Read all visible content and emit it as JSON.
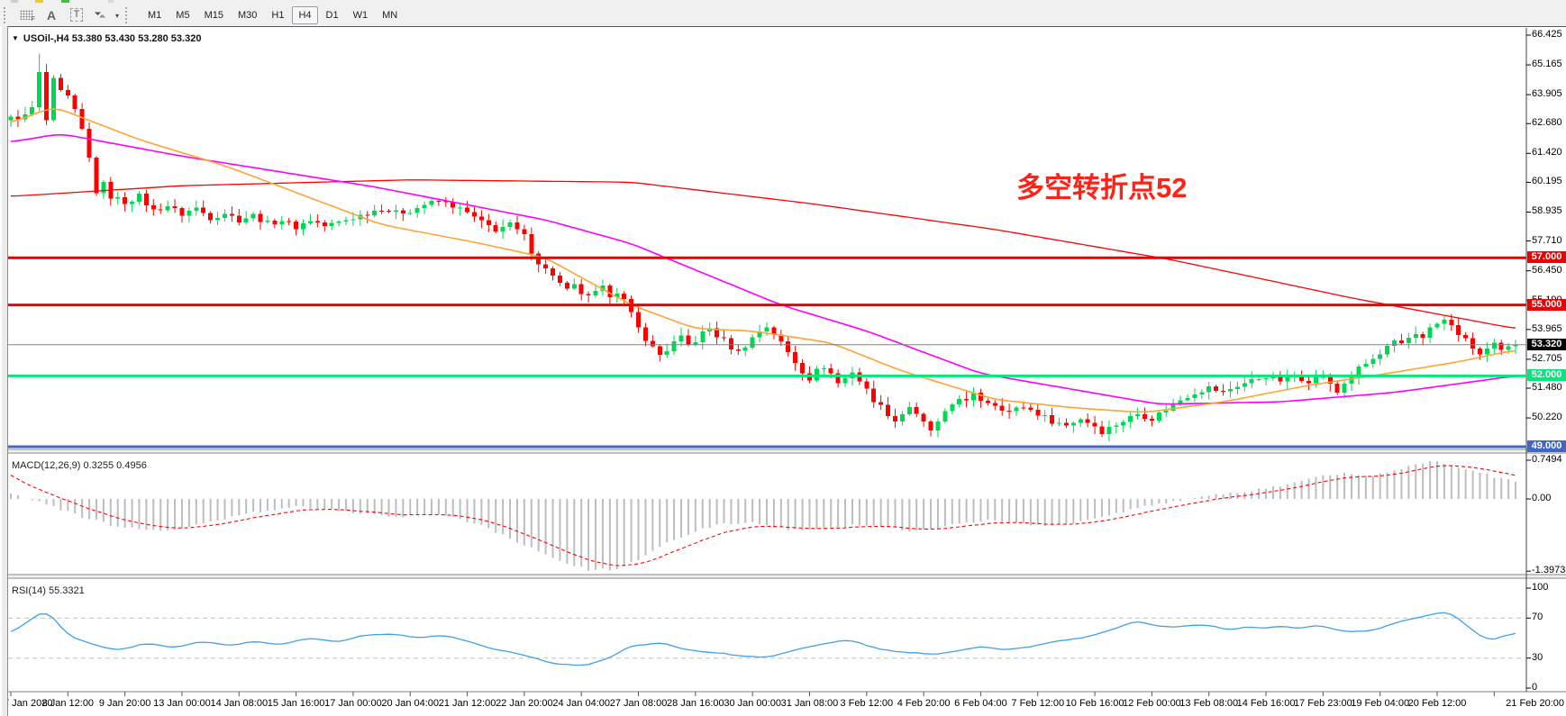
{
  "toolbar": {
    "icons": [
      {
        "name": "crosshair-grid-icon",
        "label": "F"
      },
      {
        "name": "text-label-icon",
        "label": "A"
      },
      {
        "name": "text-box-icon",
        "label": "T"
      },
      {
        "name": "arrow-tools-icon",
        "label": "▾"
      }
    ],
    "timeframes": [
      "M1",
      "M5",
      "M15",
      "M30",
      "H1",
      "H4",
      "D1",
      "W1",
      "MN"
    ],
    "active_timeframe": "H4"
  },
  "chart": {
    "title": "USOil-,H4  53.380 53.430 53.280 53.320",
    "symbol": "USOil-",
    "period": "H4",
    "ohlc": {
      "open": "53.380",
      "high": "53.430",
      "low": "53.280",
      "close": "53.320"
    },
    "annotation": {
      "text": "多空转折点52",
      "color": "#ff2317"
    },
    "price_ticks": [
      "66.425",
      "65.165",
      "63.905",
      "62.680",
      "61.420",
      "60.195",
      "58.935",
      "57.710",
      "56.450",
      "55.190",
      "53.965",
      "52.705",
      "51.480",
      "50.220"
    ],
    "hlines": [
      {
        "price": 57.0,
        "label": "57.000",
        "color": "#ef0000",
        "width": 3,
        "label_bg": "#ef0000"
      },
      {
        "price": 55.0,
        "label": "55.000",
        "color": "#ef0000",
        "width": 3,
        "label_bg": "#ef0000"
      },
      {
        "price": 53.32,
        "label": "53.320",
        "color": "#808080",
        "width": 1,
        "label_bg": "#000000"
      },
      {
        "price": 52.0,
        "label": "52.000",
        "color": "#00e97a",
        "width": 3,
        "label_bg": "#00e97a"
      },
      {
        "price": 49.0,
        "label": "49.000",
        "color": "#4066cc",
        "width": 3,
        "label_bg": "#4066cc"
      }
    ]
  },
  "macd": {
    "label": "MACD(12,26,9)",
    "values_text": "0.3255 0.4956",
    "main_value": 0.3255,
    "signal_value": 0.4956,
    "ticks": [
      {
        "label": "0.7494",
        "value": 0.7494
      },
      {
        "label": "0.00",
        "value": 0.0
      },
      {
        "label": "-1.3973",
        "value": -1.3973
      }
    ]
  },
  "rsi": {
    "label": "RSI(14)",
    "value_text": "55.3321",
    "value": 55.3321,
    "ticks": [
      {
        "label": "100",
        "value": 100
      },
      {
        "label": "70",
        "value": 70
      },
      {
        "label": "30",
        "value": 30
      },
      {
        "label": "0",
        "value": 0
      }
    ],
    "dashed_levels": [
      70,
      30
    ]
  },
  "time_axis": [
    "7 Jan 2020",
    "8 Jan 12:00",
    "9 Jan 20:00",
    "13 Jan 00:00",
    "14 Jan 08:00",
    "15 Jan 16:00",
    "17 Jan 00:00",
    "20 Jan 04:00",
    "21 Jan 12:00",
    "22 Jan 20:00",
    "24 Jan 04:00",
    "27 Jan 08:00",
    "28 Jan 16:00",
    "30 Jan 00:00",
    "31 Jan 08:00",
    "3 Feb 12:00",
    "4 Feb 20:00",
    "6 Feb 04:00",
    "7 Feb 12:00",
    "10 Feb 16:00",
    "12 Feb 00:00",
    "13 Feb 08:00",
    "14 Feb 16:00",
    "17 Feb 23:00",
    "19 Feb 04:00",
    "20 Feb 12:00",
    "21 Feb 20:00"
  ],
  "colors": {
    "bull": "#00d855",
    "bear": "#ff0000",
    "ma_fast_orange": "#ffa335",
    "ma_mid_magenta": "#ff00ff",
    "ma_slow_red": "#ff0000",
    "macd_bar": "#bdbdbd",
    "macd_signal": "#ff0000",
    "rsi_line": "#3fa0e8",
    "dashed_grid": "#c4c4c4",
    "axis_text": "#000000",
    "panel_border": "#7a7a7a"
  },
  "chart_data": {
    "type": "candlestick",
    "symbol": "USOil-",
    "timeframe": "H4",
    "n_candles": 212,
    "y_axis_range": [
      48.7,
      66.7
    ],
    "close_path_anchors": [
      [
        0,
        62.9
      ],
      [
        2,
        63.0
      ],
      [
        3,
        63.35
      ],
      [
        4,
        64.8
      ],
      [
        5,
        62.8
      ],
      [
        6,
        64.5
      ],
      [
        7,
        64.0
      ],
      [
        8,
        63.8
      ],
      [
        9,
        63.2
      ],
      [
        10,
        62.4
      ],
      [
        11,
        61.2
      ],
      [
        12,
        59.8
      ],
      [
        13,
        60.1
      ],
      [
        14,
        59.6
      ],
      [
        16,
        59.35
      ],
      [
        18,
        59.6
      ],
      [
        20,
        59.0
      ],
      [
        22,
        59.2
      ],
      [
        24,
        58.85
      ],
      [
        26,
        59.1
      ],
      [
        28,
        58.7
      ],
      [
        30,
        58.9
      ],
      [
        32,
        58.6
      ],
      [
        34,
        58.8
      ],
      [
        36,
        58.45
      ],
      [
        38,
        58.6
      ],
      [
        40,
        58.3
      ],
      [
        42,
        58.6
      ],
      [
        44,
        58.35
      ],
      [
        46,
        58.5
      ],
      [
        48,
        58.7
      ],
      [
        50,
        58.9
      ],
      [
        52,
        59.1
      ],
      [
        54,
        58.9
      ],
      [
        56,
        59.0
      ],
      [
        58,
        59.25
      ],
      [
        60,
        59.4
      ],
      [
        62,
        59.2
      ],
      [
        64,
        58.9
      ],
      [
        66,
        58.5
      ],
      [
        68,
        58.2
      ],
      [
        70,
        58.4
      ],
      [
        72,
        57.9
      ],
      [
        73,
        57.3
      ],
      [
        74,
        56.8
      ],
      [
        75,
        56.5
      ],
      [
        76,
        56.3
      ],
      [
        77,
        55.9
      ],
      [
        78,
        55.6
      ],
      [
        79,
        55.8
      ],
      [
        80,
        55.5
      ],
      [
        81,
        55.3
      ],
      [
        82,
        55.5
      ],
      [
        83,
        55.7
      ],
      [
        84,
        55.45
      ],
      [
        85,
        55.6
      ],
      [
        86,
        55.2
      ],
      [
        87,
        54.6
      ],
      [
        88,
        54.0
      ],
      [
        89,
        53.6
      ],
      [
        90,
        53.2
      ],
      [
        91,
        52.9
      ],
      [
        92,
        53.1
      ],
      [
        93,
        53.4
      ],
      [
        94,
        53.6
      ],
      [
        95,
        53.3
      ],
      [
        96,
        53.5
      ],
      [
        97,
        53.8
      ],
      [
        98,
        54.0
      ],
      [
        99,
        53.7
      ],
      [
        100,
        53.5
      ],
      [
        101,
        53.2
      ],
      [
        102,
        53.0
      ],
      [
        103,
        53.3
      ],
      [
        104,
        53.6
      ],
      [
        105,
        53.9
      ],
      [
        106,
        54.1
      ],
      [
        107,
        53.8
      ],
      [
        108,
        53.4
      ],
      [
        109,
        53.0
      ],
      [
        110,
        52.6
      ],
      [
        111,
        52.2
      ],
      [
        112,
        51.9
      ],
      [
        113,
        52.2
      ],
      [
        114,
        52.4
      ],
      [
        115,
        52.1
      ],
      [
        116,
        51.7
      ],
      [
        117,
        51.9
      ],
      [
        118,
        52.2
      ],
      [
        119,
        51.8
      ],
      [
        120,
        51.4
      ],
      [
        121,
        51.0
      ],
      [
        122,
        50.7
      ],
      [
        123,
        50.4
      ],
      [
        124,
        50.1
      ],
      [
        125,
        50.4
      ],
      [
        126,
        50.7
      ],
      [
        127,
        50.3
      ],
      [
        128,
        50.0
      ],
      [
        129,
        49.7
      ],
      [
        130,
        50.0
      ],
      [
        131,
        50.4
      ],
      [
        132,
        50.8
      ],
      [
        133,
        51.1
      ],
      [
        134,
        50.9
      ],
      [
        135,
        51.2
      ],
      [
        136,
        51.0
      ],
      [
        138,
        50.8
      ],
      [
        140,
        50.5
      ],
      [
        142,
        50.7
      ],
      [
        144,
        50.4
      ],
      [
        146,
        50.1
      ],
      [
        148,
        49.9
      ],
      [
        150,
        50.2
      ],
      [
        152,
        49.9
      ],
      [
        153,
        49.65
      ],
      [
        154,
        49.8
      ],
      [
        156,
        50.1
      ],
      [
        158,
        50.4
      ],
      [
        160,
        50.2
      ],
      [
        162,
        50.6
      ],
      [
        164,
        51.0
      ],
      [
        166,
        51.3
      ],
      [
        168,
        51.5
      ],
      [
        170,
        51.3
      ],
      [
        172,
        51.6
      ],
      [
        174,
        51.8
      ],
      [
        176,
        52.0
      ],
      [
        178,
        51.8
      ],
      [
        180,
        52.0
      ],
      [
        182,
        51.8
      ],
      [
        184,
        52.0
      ],
      [
        185,
        51.6
      ],
      [
        186,
        51.3
      ],
      [
        187,
        51.7
      ],
      [
        188,
        52.0
      ],
      [
        189,
        52.3
      ],
      [
        190,
        52.5
      ],
      [
        191,
        52.7
      ],
      [
        192,
        52.9
      ],
      [
        193,
        53.2
      ],
      [
        194,
        53.4
      ],
      [
        195,
        53.3
      ],
      [
        196,
        53.6
      ],
      [
        197,
        53.8
      ],
      [
        198,
        53.7
      ],
      [
        199,
        54.0
      ],
      [
        200,
        54.2
      ],
      [
        201,
        54.35
      ],
      [
        202,
        54.1
      ],
      [
        203,
        53.8
      ],
      [
        204,
        53.5
      ],
      [
        205,
        53.2
      ],
      [
        206,
        52.9
      ],
      [
        207,
        53.1
      ],
      [
        208,
        53.3
      ],
      [
        209,
        53.1
      ],
      [
        210,
        53.25
      ],
      [
        211,
        53.32
      ]
    ],
    "wick_overrides": {
      "4": 65.65,
      "5": 65.2
    },
    "close_jitter": 0.12,
    "wick_base": 0.06,
    "wick_span": 0.28,
    "ma_slow_red_anchors": [
      [
        0,
        59.6
      ],
      [
        24,
        60.05
      ],
      [
        56,
        60.3
      ],
      [
        87,
        60.2
      ],
      [
        112,
        59.3
      ],
      [
        138,
        58.2
      ],
      [
        163,
        56.9
      ],
      [
        188,
        55.3
      ],
      [
        211,
        54.0
      ]
    ],
    "ma_mid_magenta_anchors": [
      [
        0,
        61.9
      ],
      [
        7,
        62.25
      ],
      [
        24,
        61.3
      ],
      [
        51,
        60.0
      ],
      [
        75,
        58.6
      ],
      [
        87,
        57.6
      ],
      [
        108,
        55.0
      ],
      [
        120,
        53.9
      ],
      [
        136,
        52.1
      ],
      [
        161,
        50.8
      ],
      [
        178,
        50.9
      ],
      [
        194,
        51.3
      ],
      [
        211,
        52.0
      ]
    ],
    "ma_fast_orange_anchors": [
      [
        0,
        62.7
      ],
      [
        6,
        63.4
      ],
      [
        18,
        62.0
      ],
      [
        30,
        60.9
      ],
      [
        52,
        58.4
      ],
      [
        66,
        57.6
      ],
      [
        75,
        57.0
      ],
      [
        87,
        55.0
      ],
      [
        96,
        54.0
      ],
      [
        104,
        53.9
      ],
      [
        115,
        53.4
      ],
      [
        125,
        52.2
      ],
      [
        138,
        51.0
      ],
      [
        149,
        50.65
      ],
      [
        159,
        50.45
      ],
      [
        170,
        50.9
      ],
      [
        182,
        51.6
      ],
      [
        193,
        52.1
      ],
      [
        203,
        52.6
      ],
      [
        211,
        53.1
      ]
    ],
    "macd_anchors": [
      [
        0,
        0.1
      ],
      [
        4,
        -0.05
      ],
      [
        9,
        -0.3
      ],
      [
        15,
        -0.55
      ],
      [
        22,
        -0.62
      ],
      [
        28,
        -0.45
      ],
      [
        34,
        -0.25
      ],
      [
        41,
        -0.15
      ],
      [
        47,
        -0.25
      ],
      [
        53,
        -0.35
      ],
      [
        60,
        -0.28
      ],
      [
        66,
        -0.5
      ],
      [
        72,
        -0.9
      ],
      [
        77,
        -1.2
      ],
      [
        81,
        -1.38
      ],
      [
        85,
        -1.35
      ],
      [
        89,
        -1.1
      ],
      [
        92,
        -0.85
      ],
      [
        96,
        -0.62
      ],
      [
        100,
        -0.48
      ],
      [
        104,
        -0.45
      ],
      [
        107,
        -0.55
      ],
      [
        111,
        -0.62
      ],
      [
        115,
        -0.56
      ],
      [
        119,
        -0.5
      ],
      [
        123,
        -0.55
      ],
      [
        126,
        -0.62
      ],
      [
        130,
        -0.56
      ],
      [
        134,
        -0.46
      ],
      [
        138,
        -0.4
      ],
      [
        141,
        -0.46
      ],
      [
        145,
        -0.52
      ],
      [
        149,
        -0.46
      ],
      [
        153,
        -0.36
      ],
      [
        157,
        -0.22
      ],
      [
        160,
        -0.12
      ],
      [
        164,
        -0.03
      ],
      [
        168,
        0.07
      ],
      [
        172,
        0.13
      ],
      [
        175,
        0.18
      ],
      [
        179,
        0.28
      ],
      [
        183,
        0.42
      ],
      [
        187,
        0.5
      ],
      [
        191,
        0.45
      ],
      [
        194,
        0.55
      ],
      [
        198,
        0.68
      ],
      [
        200,
        0.73
      ],
      [
        203,
        0.62
      ],
      [
        206,
        0.5
      ],
      [
        209,
        0.4
      ],
      [
        211,
        0.3255
      ]
    ],
    "macd_signal_start": 0.55,
    "rsi_anchors": [
      [
        0,
        55
      ],
      [
        3,
        70
      ],
      [
        5,
        78
      ],
      [
        8,
        52
      ],
      [
        12,
        43
      ],
      [
        15,
        38
      ],
      [
        19,
        45
      ],
      [
        23,
        40
      ],
      [
        27,
        47
      ],
      [
        31,
        42
      ],
      [
        34,
        47
      ],
      [
        38,
        44
      ],
      [
        42,
        50
      ],
      [
        46,
        46
      ],
      [
        49,
        52
      ],
      [
        53,
        55
      ],
      [
        57,
        50
      ],
      [
        61,
        54
      ],
      [
        65,
        45
      ],
      [
        68,
        38
      ],
      [
        72,
        33
      ],
      [
        76,
        25
      ],
      [
        80,
        22
      ],
      [
        84,
        31
      ],
      [
        87,
        42
      ],
      [
        91,
        46
      ],
      [
        95,
        38
      ],
      [
        99,
        35
      ],
      [
        102,
        32
      ],
      [
        106,
        30
      ],
      [
        110,
        38
      ],
      [
        114,
        45
      ],
      [
        118,
        48
      ],
      [
        121,
        40
      ],
      [
        125,
        36
      ],
      [
        129,
        34
      ],
      [
        133,
        38
      ],
      [
        136,
        42
      ],
      [
        140,
        38
      ],
      [
        144,
        43
      ],
      [
        148,
        48
      ],
      [
        152,
        53
      ],
      [
        155,
        60
      ],
      [
        158,
        67
      ],
      [
        160,
        63
      ],
      [
        163,
        60
      ],
      [
        166,
        64
      ],
      [
        168,
        62
      ],
      [
        171,
        58
      ],
      [
        173,
        62
      ],
      [
        176,
        60
      ],
      [
        178,
        63
      ],
      [
        181,
        60
      ],
      [
        183,
        63
      ],
      [
        186,
        58
      ],
      [
        188,
        56
      ],
      [
        191,
        58
      ],
      [
        194,
        65
      ],
      [
        197,
        71
      ],
      [
        200,
        74
      ],
      [
        202,
        76
      ],
      [
        204,
        63
      ],
      [
        206,
        53
      ],
      [
        207,
        47
      ],
      [
        209,
        51
      ],
      [
        211,
        55.33
      ]
    ]
  }
}
